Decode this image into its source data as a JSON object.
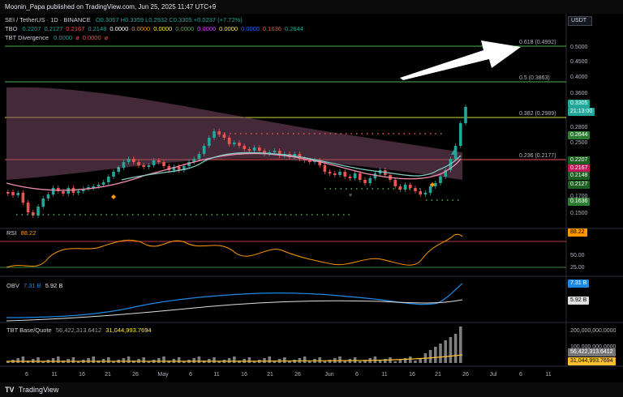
{
  "header": {
    "published": "Moonin_Papa published on TradingView.com, Jun 25, 2025 11:47 UTC+9"
  },
  "legend": {
    "symbol": "SEI / TetherUS · 1D · BINANCE",
    "ohlc": "O0.3067 H0.3359 L0.2932 C0.3305 +0.0237 (+7.72%)",
    "tbo_name": "TBO",
    "tbo_values": [
      "0.2207",
      "0.2127",
      "0.2167",
      "0.2148",
      "0.0000",
      "0.0000",
      "0.0000",
      "0.0000",
      "0.0000",
      "0.0000",
      "0.0000",
      "0.1636",
      "0.2644"
    ],
    "tbt_name": "TBT Divergence",
    "tbt_values": [
      "0.0000",
      "ø",
      "0.0000",
      "ø"
    ]
  },
  "price_axis": {
    "currency": "USDT",
    "ticks": [
      "0.5000",
      "0.4500",
      "0.4000",
      "0.3600",
      "0.2800",
      "0.2500",
      "0.1700",
      "0.1500"
    ],
    "tags": [
      {
        "text": "0.3305",
        "bg": "#26a69a",
        "fg": "#ffffff"
      },
      {
        "text": "21:13:00",
        "bg": "#26a69a",
        "fg": "#ffffff"
      },
      {
        "text": "0.2644",
        "bg": "#2e7d32",
        "fg": "#ffffff"
      },
      {
        "text": "0.2207",
        "bg": "#1b5e20",
        "fg": "#ffffff"
      },
      {
        "text": "0.2167",
        "bg": "#c2185b",
        "fg": "#ffffff"
      },
      {
        "text": "0.2148",
        "bg": "#1b5e20",
        "fg": "#ffffff"
      },
      {
        "text": "0.2127",
        "bg": "#1b5e20",
        "fg": "#ffffff"
      },
      {
        "text": "0.1636",
        "bg": "#2e7d32",
        "fg": "#ffffff"
      }
    ]
  },
  "fib_levels": [
    {
      "label": "0.618 (0.4992)",
      "color": "#4caf50"
    },
    {
      "label": "0.5 (0.3863)",
      "color": "#4caf50"
    },
    {
      "label": "0.382 (0.2989)",
      "color": "#cddc39"
    },
    {
      "label": "0.236 (0.2177)",
      "color": "#ef5350"
    }
  ],
  "rsi": {
    "name": "RSI",
    "value": "88.22",
    "value_color": "#ff9800",
    "ticks": [
      "50.00",
      "25.00"
    ],
    "tag": "88.22"
  },
  "obv": {
    "name": "OBV",
    "value1": "7.31 B",
    "value2": "5.92 B",
    "tag1": "7.31 B",
    "tag2": "5.92 B"
  },
  "tbt_bq": {
    "name": "TBT Base/Quote",
    "value1": "56,422,313.6412",
    "value2": "31,044,993.7694",
    "ticks": [
      "200,000,000.0000",
      "100,000,000.0000"
    ],
    "tag1": "56,422,313.6412",
    "tag2": "31,044,993.7694"
  },
  "time_axis": [
    "6",
    "11",
    "16",
    "21",
    "26",
    "May",
    "6",
    "11",
    "16",
    "21",
    "26",
    "Jun",
    "6",
    "11",
    "16",
    "21",
    "26",
    "Jul",
    "6",
    "11"
  ],
  "footer": {
    "logo": "TradingView"
  },
  "colors": {
    "up": "#26a69a",
    "down": "#ef5350",
    "sma": "#f48fb1",
    "ema": "#80cbc4",
    "cloud": "#7b4a68",
    "rsi": "#ff9800",
    "obv": "#1e88e5",
    "obv_ma": "#e0e0e0"
  }
}
